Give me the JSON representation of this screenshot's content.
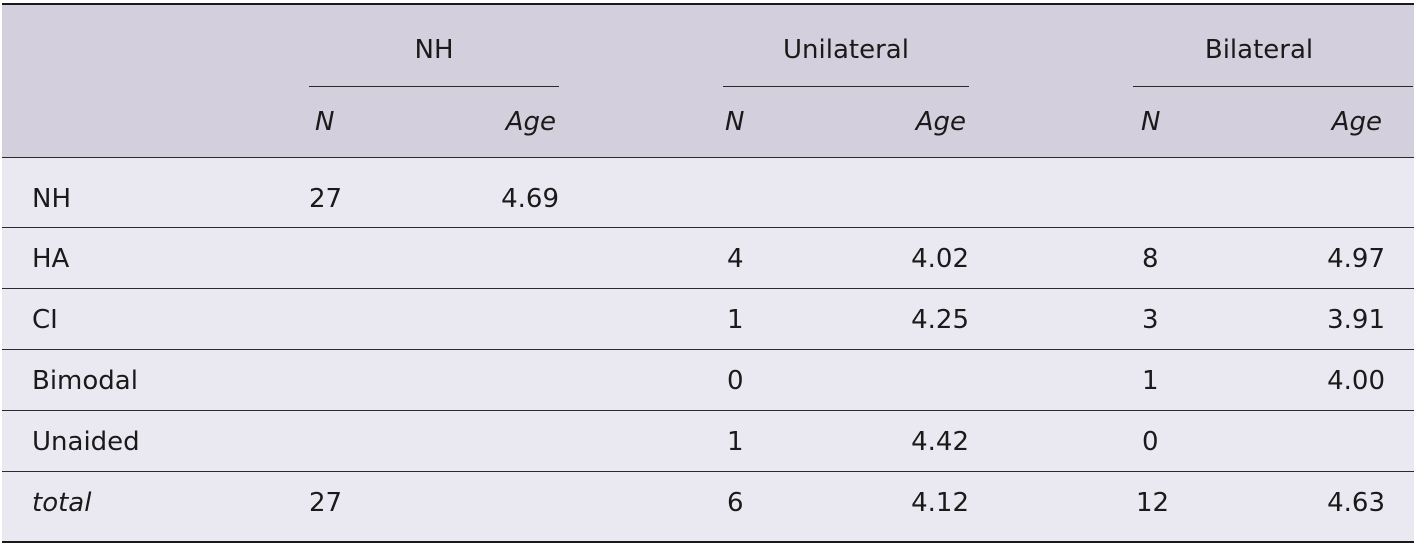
{
  "groups": [
    "NH",
    "Unilateral",
    "Bilateral"
  ],
  "subheaders": {
    "n": "N",
    "age": "Age"
  },
  "rows": [
    {
      "label": "NH",
      "nh_n": "27",
      "nh_age": "4.69",
      "uni_n": "",
      "uni_age": "",
      "bi_n": "",
      "bi_age": ""
    },
    {
      "label": "HA",
      "nh_n": "",
      "nh_age": "",
      "uni_n": "4",
      "uni_age": "4.02",
      "bi_n": "8",
      "bi_age": "4.97"
    },
    {
      "label": "CI",
      "nh_n": "",
      "nh_age": "",
      "uni_n": "1",
      "uni_age": "4.25",
      "bi_n": "3",
      "bi_age": "3.91"
    },
    {
      "label": "Bimodal",
      "nh_n": "",
      "nh_age": "",
      "uni_n": "0",
      "uni_age": "",
      "bi_n": "1",
      "bi_age": "4.00"
    },
    {
      "label": "Unaided",
      "nh_n": "",
      "nh_age": "",
      "uni_n": "1",
      "uni_age": "4.42",
      "bi_n": "0",
      "bi_age": ""
    },
    {
      "label": "total",
      "nh_n": "27",
      "nh_age": "",
      "uni_n": "6",
      "uni_age": "4.12",
      "bi_n": "12",
      "bi_age": "4.63"
    }
  ]
}
